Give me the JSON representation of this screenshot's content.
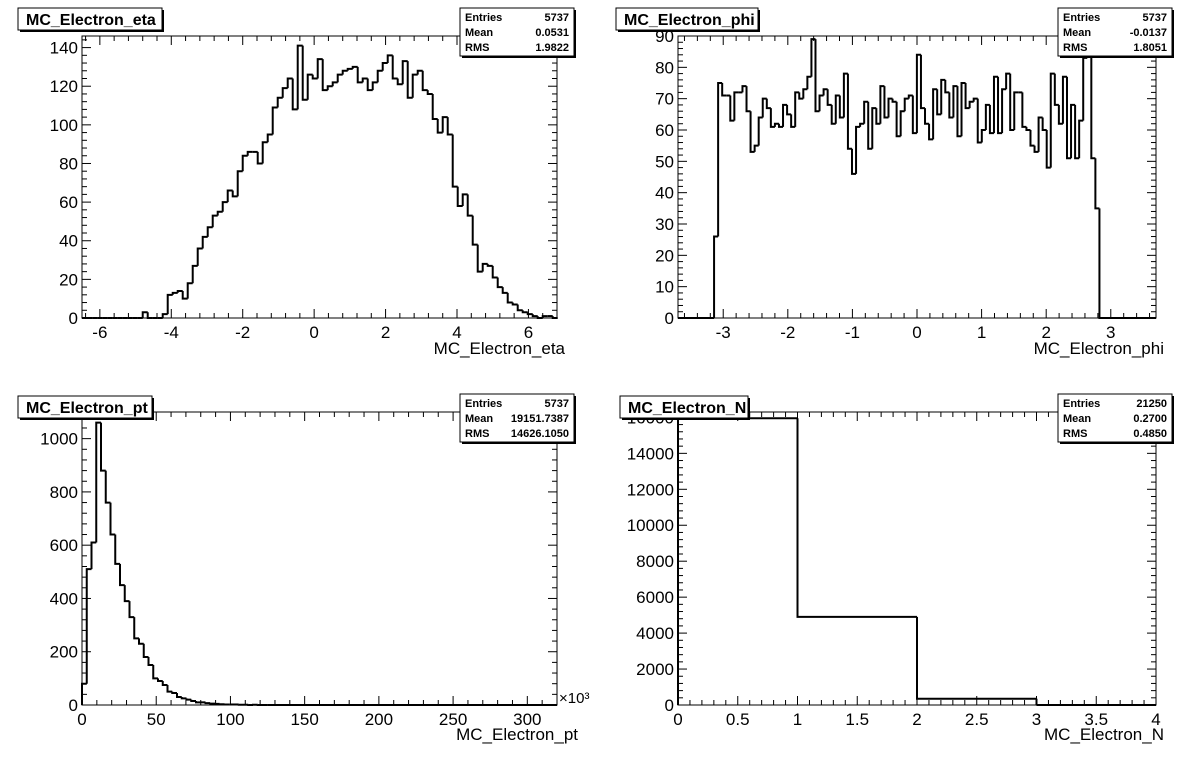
{
  "chart_data": [
    {
      "type": "histogram",
      "title": "MC_Electron_eta",
      "xlabel": "MC_Electron_eta",
      "xlim": [
        -6.5,
        6.8
      ],
      "ylim": [
        0,
        146
      ],
      "xticks": [
        -6,
        -4,
        -2,
        0,
        2,
        4,
        6
      ],
      "yticks": [
        0,
        20,
        40,
        60,
        80,
        100,
        120,
        140
      ],
      "stats": {
        "entries_label": "Entries",
        "entries": "5737",
        "mean_label": "Mean",
        "mean": "0.0531",
        "rms_label": "RMS",
        "rms": "1.9822"
      },
      "bins": {
        "x0": -6.2,
        "width": 0.14,
        "values": [
          0,
          0,
          0,
          0,
          0,
          0,
          0,
          0,
          0,
          0,
          3,
          0,
          0,
          0,
          2,
          12,
          13,
          14,
          10,
          18,
          27,
          36,
          42,
          47,
          53,
          55,
          60,
          66,
          63,
          76,
          84,
          86,
          86,
          80,
          91,
          95,
          109,
          114,
          119,
          124,
          108,
          141,
          113,
          126,
          124,
          134,
          118,
          120,
          122,
          126,
          128,
          129,
          130,
          122,
          124,
          118,
          122,
          128,
          132,
          136,
          124,
          121,
          133,
          114,
          126,
          128,
          118,
          116,
          103,
          96,
          104,
          95,
          68,
          58,
          64,
          53,
          38,
          24,
          28,
          27,
          21,
          16,
          13,
          8,
          7,
          4,
          3,
          2,
          1,
          0,
          1,
          1,
          0,
          0
        ]
      }
    },
    {
      "type": "histogram",
      "title": "MC_Electron_phi",
      "xlabel": "MC_Electron_phi",
      "xlim": [
        -3.7,
        3.7
      ],
      "ylim": [
        0,
        90
      ],
      "xticks": [
        -3,
        -2,
        -1,
        0,
        1,
        2,
        3
      ],
      "yticks": [
        0,
        10,
        20,
        30,
        40,
        50,
        60,
        70,
        80,
        90
      ],
      "stats": {
        "entries_label": "Entries",
        "entries": "5737",
        "mean_label": "Mean",
        "mean": "-0.0137",
        "rms_label": "RMS",
        "rms": "1.8051"
      },
      "bins": {
        "x0": -3.1416,
        "width": 0.0628,
        "values": [
          26,
          75,
          71,
          71,
          63,
          72,
          72,
          74,
          66,
          53,
          55,
          64,
          70,
          67,
          61,
          62,
          61,
          68,
          65,
          61,
          72,
          70,
          73,
          77,
          89,
          66,
          71,
          73,
          68,
          62,
          71,
          64,
          78,
          54,
          46,
          61,
          62,
          69,
          54,
          67,
          62,
          74,
          64,
          70,
          69,
          58,
          66,
          70,
          71,
          59,
          84,
          67,
          62,
          57,
          73,
          65,
          76,
          72,
          64,
          74,
          58,
          75,
          67,
          69,
          70,
          56,
          60,
          68,
          59,
          77,
          59,
          73,
          78,
          60,
          72,
          72,
          61,
          60,
          55,
          53,
          64,
          60,
          48,
          78,
          68,
          62,
          77,
          51,
          68,
          51,
          63,
          83,
          91,
          51,
          35,
          0
        ]
      }
    },
    {
      "type": "histogram",
      "title": "MC_Electron_pt",
      "xlabel": "MC_Electron_pt",
      "x_exponent_label": "×10³",
      "xlim": [
        0,
        320
      ],
      "ylim": [
        0,
        1100
      ],
      "xticks": [
        0,
        50,
        100,
        150,
        200,
        250,
        300
      ],
      "yticks": [
        0,
        200,
        400,
        600,
        800,
        1000
      ],
      "stats": {
        "entries_label": "Entries",
        "entries": "5737",
        "mean_label": "Mean",
        "mean": "19151.7387",
        "rms_label": "RMS",
        "rms": "14626.1050"
      },
      "bins": {
        "x0": 0,
        "width": 3.2,
        "values": [
          80,
          510,
          610,
          1060,
          880,
          760,
          640,
          530,
          450,
          390,
          330,
          250,
          230,
          180,
          150,
          100,
          90,
          75,
          50,
          45,
          30,
          25,
          20,
          15,
          10,
          10,
          7,
          5,
          4,
          3,
          2,
          2,
          2,
          1,
          1,
          0,
          1,
          0,
          0,
          0
        ]
      }
    },
    {
      "type": "histogram",
      "title": "MC_Electron_N",
      "xlabel": "MC_Electron_N",
      "xlim": [
        0,
        4
      ],
      "ylim": [
        0,
        16300
      ],
      "xticks": [
        0,
        0.5,
        1,
        1.5,
        2,
        2.5,
        3,
        3.5,
        4
      ],
      "yticks": [
        0,
        2000,
        4000,
        6000,
        8000,
        10000,
        12000,
        14000,
        16000
      ],
      "stats": {
        "entries_label": "Entries",
        "entries": "21250",
        "mean_label": "Mean",
        "mean": "0.2700",
        "rms_label": "RMS",
        "rms": "0.4850"
      },
      "bins": {
        "x0": 0,
        "width": 1,
        "values": [
          15950,
          4900,
          350
        ]
      }
    }
  ]
}
